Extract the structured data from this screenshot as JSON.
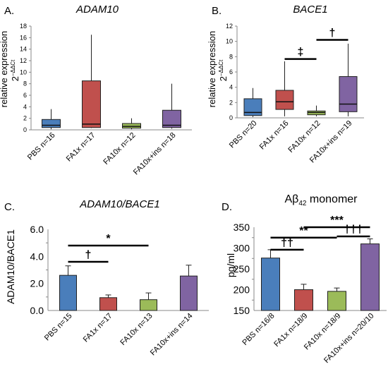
{
  "chart_data": [
    {
      "type": "box",
      "panel_label": "A.",
      "title": "ADAM10",
      "ylabel_main": "relative expression",
      "ylabel_formula": "2",
      "ylabel_exponent": "−ΔΔCt",
      "ylim": [
        0,
        18
      ],
      "yticks": [
        "0",
        "2",
        "4",
        "6",
        "8",
        "10",
        "12",
        "14",
        "16",
        "18"
      ],
      "categories": [
        "PBS n=16",
        "FA1x n=17",
        "FA10x n=12",
        "FA10x+ins n=18"
      ],
      "colors": [
        "#4a7ebb",
        "#c0504d",
        "#9bbb59",
        "#8064a2"
      ],
      "boxes": [
        {
          "whisker_low": 0.1,
          "q1": 0.4,
          "median": 0.8,
          "q3": 1.8,
          "whisker_high": 3.6
        },
        {
          "whisker_low": 0.3,
          "q1": 0.4,
          "median": 1.0,
          "q3": 8.5,
          "whisker_high": 16.5
        },
        {
          "whisker_low": 0.1,
          "q1": 0.3,
          "median": 0.6,
          "q3": 1.1,
          "whisker_high": 2.0
        },
        {
          "whisker_low": 0.2,
          "q1": 0.4,
          "median": 0.8,
          "q3": 3.4,
          "whisker_high": 8.0
        }
      ],
      "annotations": []
    },
    {
      "type": "box",
      "panel_label": "B.",
      "title": "BACE1",
      "ylabel_main": "relative expression",
      "ylabel_formula": "2",
      "ylabel_exponent": "−ΔΔCt",
      "ylim": [
        0,
        12
      ],
      "yticks": [
        "0",
        "2",
        "4",
        "6",
        "8",
        "10",
        "12"
      ],
      "categories": [
        "PBS n=20",
        "FA1x n=16",
        "FA10x n=12",
        "FA10x+ins n=19"
      ],
      "colors": [
        "#4a7ebb",
        "#c0504d",
        "#9bbb59",
        "#8064a2"
      ],
      "boxes": [
        {
          "whisker_low": 0.1,
          "q1": 0.3,
          "median": 0.7,
          "q3": 2.5,
          "whisker_high": 3.9
        },
        {
          "whisker_low": 0.2,
          "q1": 1.1,
          "median": 2.1,
          "q3": 3.6,
          "whisker_high": 7.4
        },
        {
          "whisker_low": 0.2,
          "q1": 0.4,
          "median": 0.7,
          "q3": 0.9,
          "whisker_high": 1.6
        },
        {
          "whisker_low": 0.2,
          "q1": 0.8,
          "median": 1.8,
          "q3": 5.4,
          "whisker_high": 9.7
        }
      ],
      "annotations": [
        {
          "symbol": "‡",
          "from": 1,
          "to": 2,
          "y": 7.7
        },
        {
          "symbol": "†",
          "from": 2,
          "to": 3,
          "y": 10.2
        }
      ]
    },
    {
      "type": "bar",
      "panel_label": "C.",
      "title": "ADAM10/BACE1",
      "ylabel": "ADAM10/BACE1",
      "ylim": [
        0,
        6
      ],
      "yticks": [
        "0.0",
        "2.0",
        "4.0",
        "6.0"
      ],
      "categories": [
        "PBS n=15",
        "FA1x n=17",
        "FA10x n=13",
        "FA10x+ins n=14"
      ],
      "colors": [
        "#4a7ebb",
        "#c0504d",
        "#9bbb59",
        "#8064a2"
      ],
      "values": [
        2.6,
        0.95,
        0.8,
        2.55
      ],
      "errors": [
        0.7,
        0.2,
        0.5,
        0.8
      ],
      "annotations": [
        {
          "symbol": "†",
          "from": 0,
          "to": 1,
          "y": 3.6
        },
        {
          "symbol": "*",
          "from": 0,
          "to": 2,
          "y": 4.8
        }
      ]
    },
    {
      "type": "bar",
      "panel_label": "D.",
      "title": "Aβ",
      "title_sub": "42",
      "title_rest": " monomer",
      "ylabel": "pg/ml",
      "ylim": [
        150,
        350
      ],
      "yticks": [
        "150",
        "200",
        "250",
        "300",
        "350"
      ],
      "categories": [
        "PBS n=16/8",
        "FA1x n=18/9",
        "FA10x n=18/9",
        "FA10x+ins n=20/10"
      ],
      "colors": [
        "#4a7ebb",
        "#c0504d",
        "#9bbb59",
        "#8064a2"
      ],
      "values": [
        276,
        200,
        196,
        310
      ],
      "errors": [
        20,
        13,
        8,
        12
      ],
      "annotations": [
        {
          "symbol": "††",
          "from": 0,
          "to": 1,
          "y": 296
        },
        {
          "symbol": "**",
          "from": 0,
          "to": 2,
          "y": 325
        },
        {
          "symbol": "†††",
          "from": 2,
          "to": 3,
          "y": 328
        },
        {
          "symbol": "***",
          "from": 1,
          "to": 3,
          "y": 350
        }
      ]
    }
  ]
}
